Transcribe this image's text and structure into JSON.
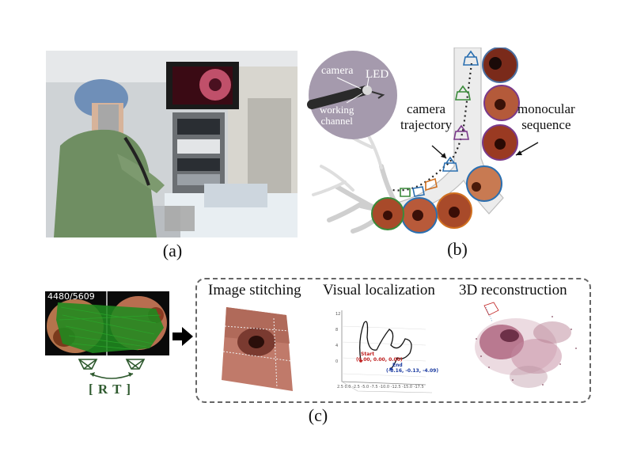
{
  "panel_a": {
    "caption": "(a)"
  },
  "panel_b": {
    "caption": "(b)",
    "labels": {
      "camera": "camera",
      "led": "LED",
      "working_channel_line1": "working",
      "working_channel_line2": "channel",
      "camera_trajectory_line1": "camera",
      "camera_trajectory_line2": "trajectory",
      "monocular_line1": "monocular",
      "monocular_line2": "sequence"
    }
  },
  "panel_c": {
    "caption": "(c)",
    "frame_counter": "4480/5609",
    "rt_label": "[ R T ]",
    "titles": {
      "stitching": "Image stitching",
      "localization": "Visual localization",
      "reconstruction": "3D reconstruction"
    },
    "plot": {
      "start_label": "Start",
      "start_coords": "(0.00, 0.00, 0.00)",
      "end_label": "End",
      "end_coords": "(-8.16, -0.13, -4.09)"
    }
  },
  "colors": {
    "green_track": "#1f8a1f",
    "rt_green": "#2f5a2f",
    "start_red": "#c02020",
    "end_blue": "#1a3aa0",
    "trajectory_blue": "#2a6fb0",
    "trajectory_green": "#3a8a3a",
    "trajectory_purple": "#7a3a8a",
    "trajectory_orange": "#d07020"
  }
}
